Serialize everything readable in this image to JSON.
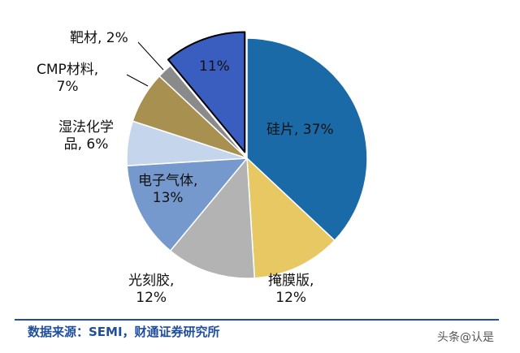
{
  "chart_data": {
    "type": "pie",
    "slices": [
      {
        "label": "硅片",
        "value": 37,
        "text": "硅片, 37%",
        "color": "#1a6aa8"
      },
      {
        "label": "掩膜版",
        "value": 12,
        "text": "掩膜版,|12%",
        "color": "#e8c862"
      },
      {
        "label": "光刻胶",
        "value": 12,
        "text": "光刻胶,|12%",
        "color": "#b3b3b3"
      },
      {
        "label": "电子气体",
        "value": 13,
        "text": "电子气体,|13%",
        "color": "#7599cc"
      },
      {
        "label": "湿法化学品",
        "value": 6,
        "text": "湿法化学|品, 6%",
        "color": "#c5d6ec"
      },
      {
        "label": "CMP材料",
        "value": 7,
        "text": "CMP材料,|7%",
        "color": "#a89050"
      },
      {
        "label": "靶材",
        "value": 2,
        "text": "靶材, 2%",
        "color": "#8a8a8a"
      },
      {
        "label": "",
        "value": 11,
        "text": "11%",
        "color": "#3a5ec0",
        "exploded": true
      }
    ]
  },
  "footer": {
    "source": "数据来源：SEMI，财通证券研究所",
    "watermark": "头条@认是"
  }
}
